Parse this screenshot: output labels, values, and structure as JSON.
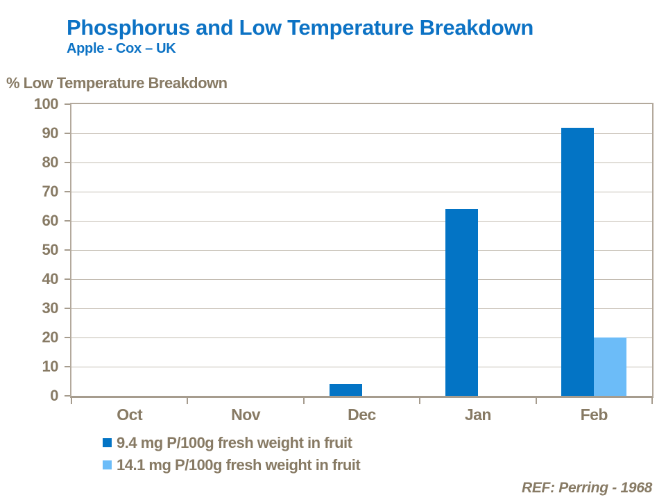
{
  "slide": {
    "title": "Phosphorus and Low Temperature Breakdown",
    "subtitle": "Apple - Cox – UK",
    "reference": "REF: Perring - 1968"
  },
  "colors": {
    "title_blue": "#0C72C4",
    "axis_text_brown": "#877A64",
    "series1_dark_blue": "#0374C5",
    "series2_light_blue": "#6CBCF8",
    "gridline": "#C3BCB1",
    "plot_border": "#B3A99C",
    "axis_line": "#A69C8E",
    "background": "#FFFFFF"
  },
  "chart_data": {
    "type": "bar",
    "title": "Phosphorus and Low Temperature Breakdown",
    "subtitle": "Apple - Cox – UK",
    "xlabel": "",
    "ylabel": "% Low Temperature Breakdown",
    "categories": [
      "Oct",
      "Nov",
      "Dec",
      "Jan",
      "Feb"
    ],
    "series": [
      {
        "name": "9.4 mg P/100g fresh weight in fruit",
        "color": "#0374C5",
        "values": [
          0,
          0,
          4,
          64,
          92
        ]
      },
      {
        "name": "14.1 mg P/100g fresh weight in fruit",
        "color": "#6CBCF8",
        "values": [
          0,
          0,
          0,
          0,
          20
        ]
      }
    ],
    "ylim": [
      0,
      100
    ],
    "ytick_step": 10,
    "grid": true,
    "legend_position": "bottom-left",
    "annotation": "REF: Perring - 1968"
  }
}
